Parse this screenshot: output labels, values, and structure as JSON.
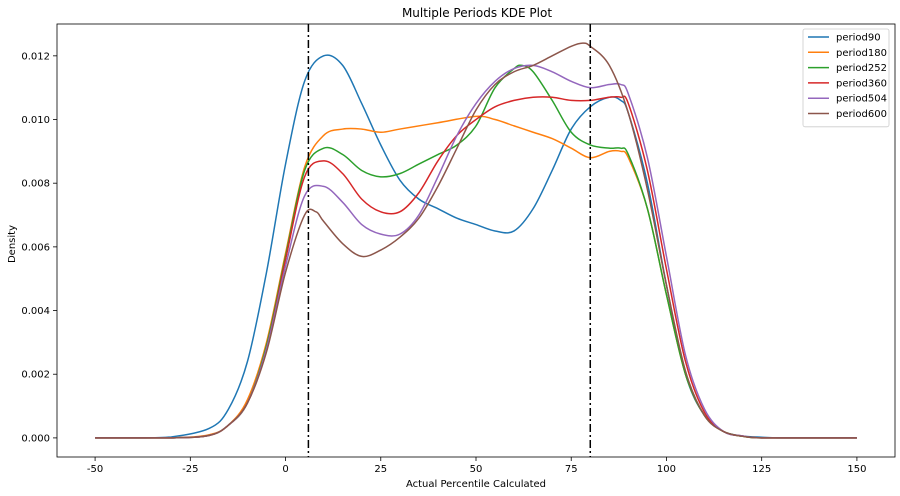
{
  "chart_data": {
    "type": "line",
    "title": "Multiple Periods KDE Plot",
    "xlabel": "Actual Percentile Calculated",
    "ylabel": "Density",
    "xlim": [
      -60,
      160
    ],
    "ylim": [
      -0.0006,
      0.013
    ],
    "xticks": [
      -50,
      -25,
      0,
      25,
      50,
      75,
      100,
      125,
      150
    ],
    "yticks": [
      0.0,
      0.002,
      0.004,
      0.006,
      0.008,
      0.01,
      0.012
    ],
    "ytick_labels": [
      "0.000",
      "0.002",
      "0.004",
      "0.006",
      "0.008",
      "0.010",
      "0.012"
    ],
    "grid": false,
    "legend_position": "top-right",
    "vlines": [
      6,
      80
    ],
    "series": [
      {
        "name": "period90",
        "color": "#1f77b4",
        "x": [
          -50,
          -40,
          -30,
          -20,
          -15,
          -10,
          -5,
          0,
          5,
          10,
          15,
          20,
          25,
          30,
          35,
          40,
          45,
          50,
          55,
          60,
          65,
          70,
          75,
          80,
          85,
          88,
          90,
          95,
          100,
          105,
          110,
          115,
          120,
          125,
          130,
          140,
          150
        ],
        "y": [
          0.0,
          0.0,
          3e-05,
          0.0003,
          0.0009,
          0.0024,
          0.0052,
          0.0086,
          0.0112,
          0.012,
          0.0117,
          0.0105,
          0.0092,
          0.0081,
          0.0075,
          0.0072,
          0.0069,
          0.0067,
          0.0065,
          0.0065,
          0.0072,
          0.0084,
          0.0097,
          0.0104,
          0.0107,
          0.0106,
          0.0102,
          0.008,
          0.0048,
          0.002,
          0.0007,
          0.0002,
          6e-05,
          2e-05,
          0.0,
          0.0,
          0.0
        ]
      },
      {
        "name": "period180",
        "color": "#ff7f0e",
        "x": [
          -50,
          -30,
          -20,
          -15,
          -10,
          -5,
          0,
          5,
          10,
          15,
          20,
          25,
          30,
          40,
          50,
          55,
          60,
          65,
          70,
          75,
          80,
          85,
          88,
          90,
          95,
          100,
          105,
          110,
          115,
          120,
          125,
          140,
          150
        ],
        "y": [
          0.0,
          0.0,
          0.0001,
          0.0004,
          0.0012,
          0.003,
          0.0058,
          0.0085,
          0.0095,
          0.0097,
          0.0097,
          0.0096,
          0.0097,
          0.0099,
          0.0101,
          0.01,
          0.0098,
          0.0096,
          0.0094,
          0.0091,
          0.0088,
          0.009,
          0.009,
          0.0088,
          0.0072,
          0.0045,
          0.002,
          0.0007,
          0.0002,
          5e-05,
          0.0,
          0.0,
          0.0
        ]
      },
      {
        "name": "period252",
        "color": "#2ca02c",
        "x": [
          -50,
          -30,
          -20,
          -15,
          -10,
          -5,
          0,
          5,
          10,
          15,
          20,
          25,
          30,
          35,
          40,
          45,
          50,
          55,
          60,
          62,
          65,
          70,
          75,
          80,
          85,
          88,
          90,
          95,
          100,
          105,
          110,
          115,
          120,
          125,
          140,
          150
        ],
        "y": [
          0.0,
          0.0,
          8e-05,
          0.0004,
          0.0011,
          0.0029,
          0.0057,
          0.0084,
          0.0091,
          0.0089,
          0.0084,
          0.0082,
          0.0083,
          0.0086,
          0.0089,
          0.0092,
          0.0098,
          0.011,
          0.0116,
          0.0117,
          0.0115,
          0.0106,
          0.0096,
          0.0092,
          0.0091,
          0.0091,
          0.0089,
          0.0072,
          0.0045,
          0.002,
          0.0007,
          0.0002,
          5e-05,
          0.0,
          0.0,
          0.0
        ]
      },
      {
        "name": "period360",
        "color": "#d62728",
        "x": [
          -50,
          -30,
          -20,
          -15,
          -10,
          -5,
          0,
          5,
          10,
          15,
          20,
          25,
          30,
          35,
          40,
          45,
          50,
          55,
          60,
          65,
          70,
          75,
          80,
          85,
          88,
          90,
          95,
          100,
          105,
          110,
          115,
          120,
          125,
          140,
          150
        ],
        "y": [
          0.0,
          0.0,
          8e-05,
          0.0004,
          0.0011,
          0.0028,
          0.0056,
          0.0082,
          0.0087,
          0.0083,
          0.0075,
          0.0071,
          0.0071,
          0.0077,
          0.0087,
          0.0095,
          0.01,
          0.0104,
          0.0106,
          0.0107,
          0.0107,
          0.0106,
          0.0106,
          0.0107,
          0.0107,
          0.0105,
          0.0084,
          0.0053,
          0.0024,
          0.0008,
          0.0002,
          6e-05,
          0.0,
          0.0,
          0.0
        ]
      },
      {
        "name": "period504",
        "color": "#9467bd",
        "x": [
          -50,
          -30,
          -20,
          -15,
          -10,
          -5,
          0,
          5,
          10,
          15,
          20,
          25,
          30,
          35,
          40,
          45,
          50,
          55,
          60,
          65,
          70,
          75,
          80,
          85,
          88,
          90,
          95,
          100,
          105,
          110,
          115,
          120,
          125,
          140,
          150
        ],
        "y": [
          0.0,
          0.0,
          8e-05,
          0.0004,
          0.0011,
          0.0028,
          0.0054,
          0.0076,
          0.0079,
          0.0074,
          0.0067,
          0.0064,
          0.0064,
          0.007,
          0.0082,
          0.0095,
          0.0105,
          0.0112,
          0.0116,
          0.0117,
          0.0115,
          0.0112,
          0.011,
          0.0111,
          0.0111,
          0.0108,
          0.0088,
          0.0057,
          0.0026,
          0.0009,
          0.0002,
          6e-05,
          0.0,
          0.0,
          0.0
        ]
      },
      {
        "name": "period600",
        "color": "#8c564b",
        "x": [
          -50,
          -30,
          -20,
          -15,
          -10,
          -5,
          0,
          5,
          8,
          10,
          15,
          20,
          25,
          30,
          35,
          40,
          45,
          50,
          55,
          60,
          65,
          70,
          75,
          78,
          80,
          85,
          90,
          95,
          100,
          105,
          110,
          115,
          120,
          125,
          140,
          150
        ],
        "y": [
          0.0,
          0.0,
          8e-05,
          0.0004,
          0.0011,
          0.0027,
          0.0052,
          0.007,
          0.0071,
          0.0068,
          0.0061,
          0.0057,
          0.0059,
          0.0063,
          0.0069,
          0.0079,
          0.0091,
          0.0103,
          0.0111,
          0.0115,
          0.0117,
          0.012,
          0.0123,
          0.0124,
          0.0123,
          0.0117,
          0.0102,
          0.0078,
          0.0048,
          0.0021,
          0.0007,
          0.0002,
          5e-05,
          0.0,
          0.0,
          0.0
        ]
      }
    ]
  }
}
